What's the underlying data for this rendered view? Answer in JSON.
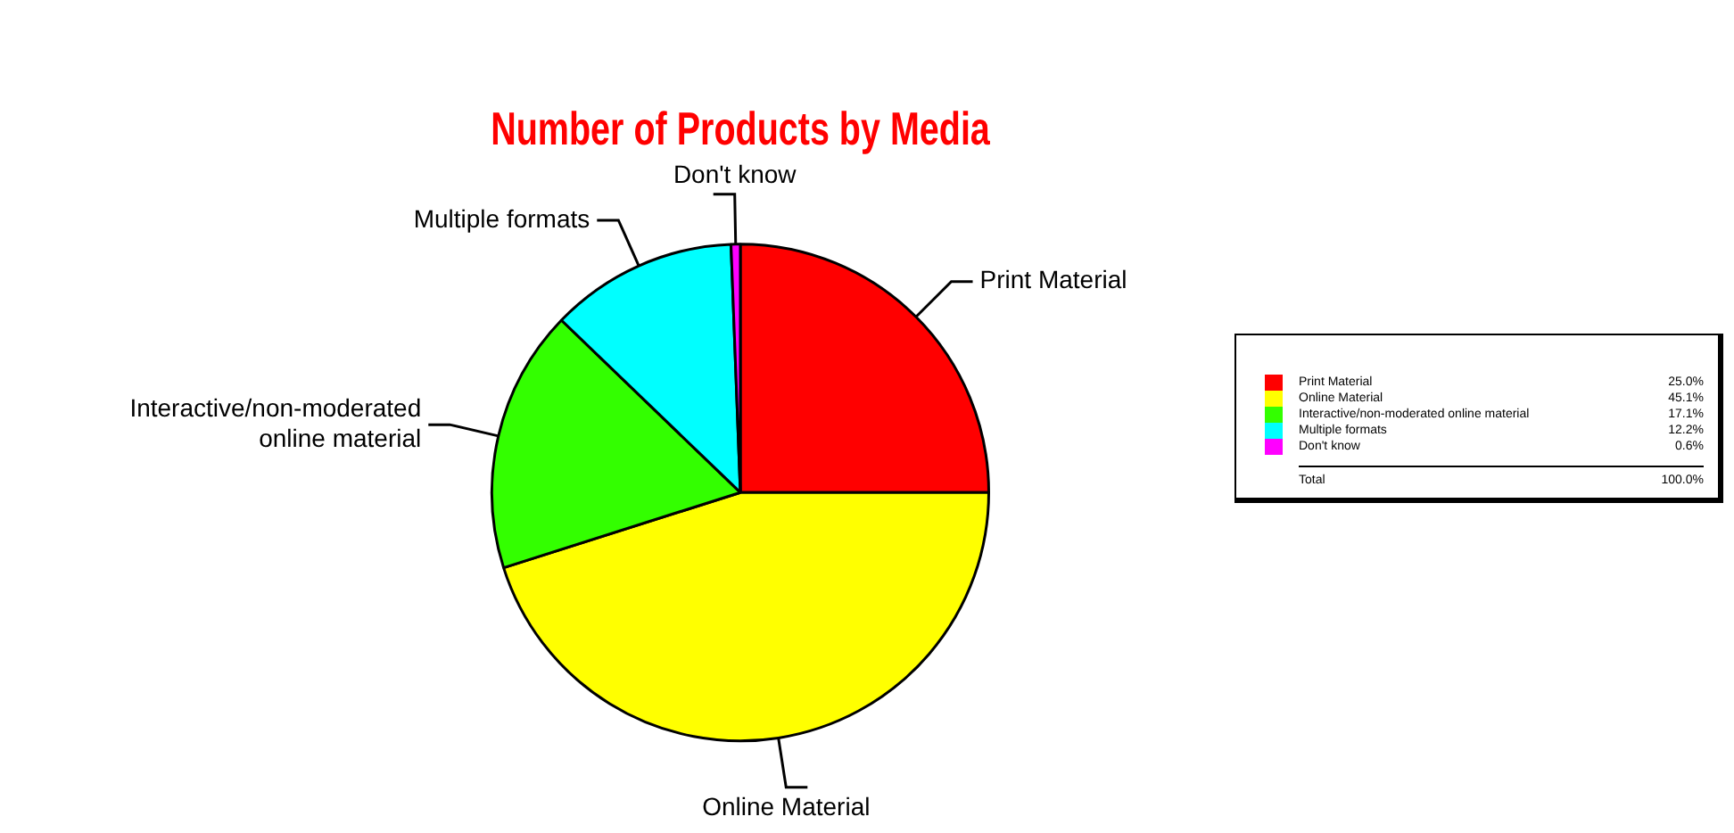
{
  "chart_data": {
    "type": "pie",
    "title": "Number of Products by Media",
    "categories": [
      "Print Material",
      "Online Material",
      "Interactive/non-moderated online material",
      "Multiple formats",
      "Don't know"
    ],
    "values": [
      25.0,
      45.1,
      17.1,
      12.2,
      0.6
    ],
    "value_labels": [
      "25.0%",
      "45.1%",
      "17.1%",
      "12.2%",
      "0.6%"
    ],
    "colors": [
      "#ff0000",
      "#ffff00",
      "#33ff00",
      "#00ffff",
      "#ff00ff"
    ],
    "legend": "right",
    "annotations": [
      "Total",
      "100.0%"
    ]
  }
}
